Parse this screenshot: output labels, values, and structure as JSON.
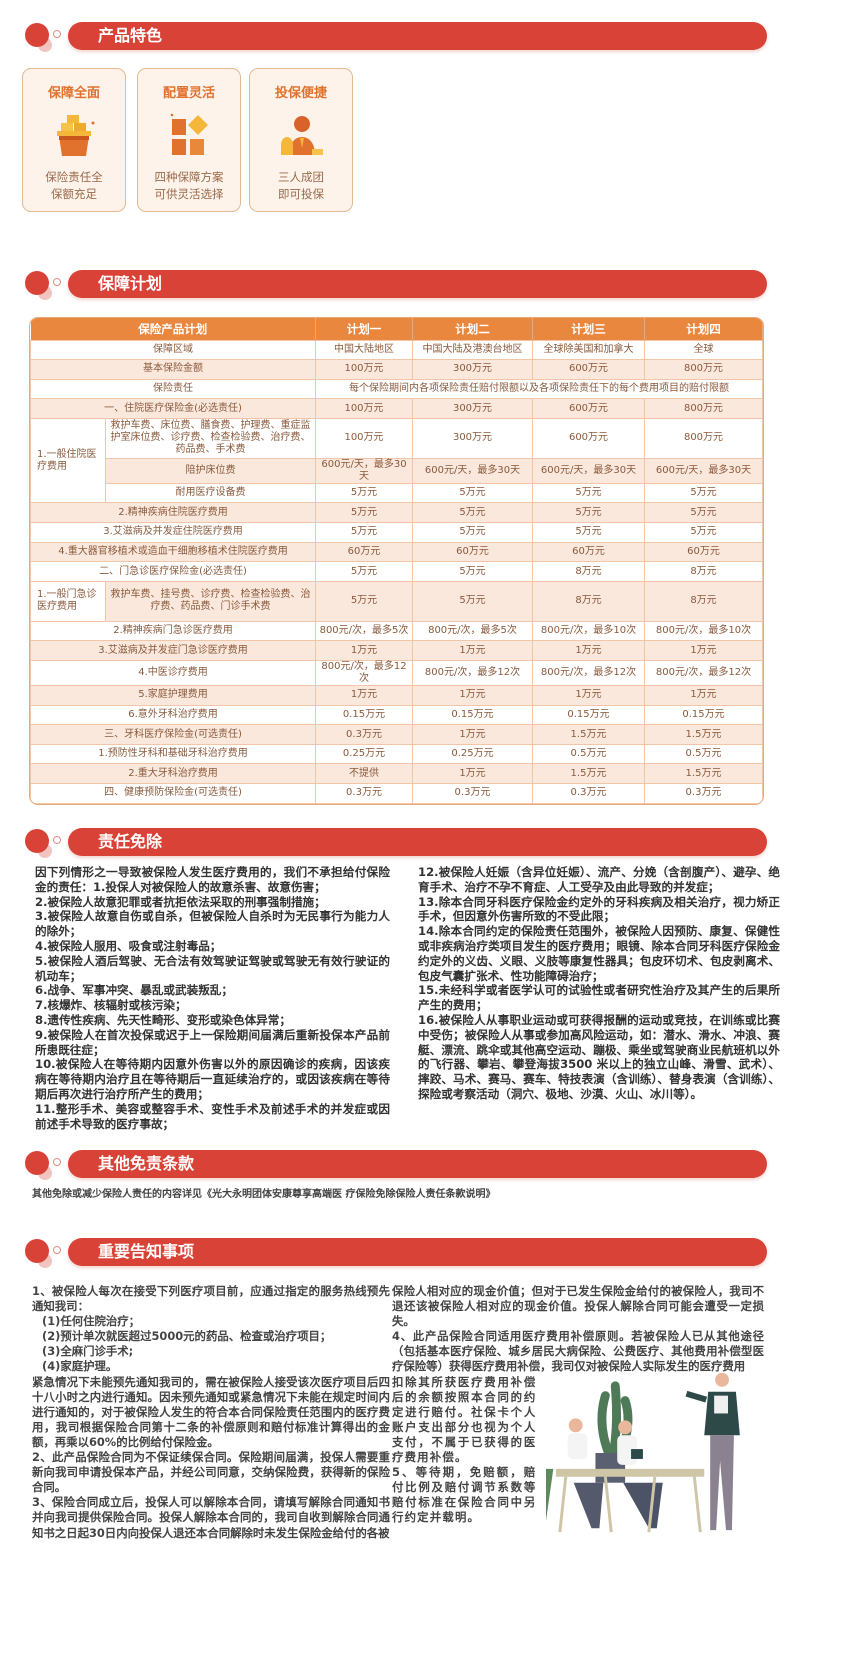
{
  "colors": {
    "accent": "#d94236",
    "table_header": "#e9873f",
    "table_alt_row": "#fbe8dd",
    "card_bg": "#fdf3ea",
    "card_title": "#e0722e"
  },
  "sections": {
    "features": "产品特色",
    "plan": "保障计划",
    "exclusions": "责任免除",
    "other_exclusions": "其他免责条款",
    "notices": "重要告知事项"
  },
  "features": [
    {
      "title": "保障全面",
      "icon": "gold-bars-basket-icon",
      "desc1": "保险责任全",
      "desc2": "保额充足"
    },
    {
      "title": "配置灵活",
      "icon": "blocks-grid-icon",
      "desc1": "四种保障方案",
      "desc2": "可供灵活选择"
    },
    {
      "title": "投保便捷",
      "icon": "person-money-icon",
      "desc1": "三人成团",
      "desc2": "即可投保"
    }
  ],
  "table": {
    "header": [
      "保险产品计划",
      "计划一",
      "计划二",
      "计划三",
      "计划四"
    ],
    "rows": [
      {
        "label": "保障区域",
        "values": [
          "中国大陆地区",
          "中国大陆及港澳台地区",
          "全球除美国和加拿大",
          "全球"
        ]
      },
      {
        "label": "基本保险金额",
        "values": [
          "100万元",
          "300万元",
          "600万元",
          "800万元"
        ]
      },
      {
        "label": "保险责任",
        "merged": "每个保险期间内各项保险责任赔付限额以及各项保险责任下的每个费用项目的赔付限额"
      },
      {
        "label": "一、住院医疗保险金(必选责任)",
        "values": [
          "100万元",
          "300万元",
          "600万元",
          "800万元"
        ]
      },
      {
        "group": "1.一般住院医疗费用",
        "group_rows": 3,
        "label": "救护车费、床位费、膳食费、护理费、重症监护室床位费、诊疗费、检查检验费、治疗费、药品费、手术费",
        "tall": true,
        "values": [
          "100万元",
          "300万元",
          "600万元",
          "800万元"
        ]
      },
      {
        "sub": true,
        "label": "陪护床位费",
        "values": [
          "600元/天，最多30天",
          "600元/天，最多30天",
          "600元/天，最多30天",
          "600元/天，最多30天"
        ]
      },
      {
        "sub": true,
        "label": "耐用医疗设备费",
        "values": [
          "5万元",
          "5万元",
          "5万元",
          "5万元"
        ]
      },
      {
        "label": "2.精神疾病住院医疗费用",
        "values": [
          "5万元",
          "5万元",
          "5万元",
          "5万元"
        ]
      },
      {
        "label": "3.艾滋病及并发症住院医疗费用",
        "values": [
          "5万元",
          "5万元",
          "5万元",
          "5万元"
        ]
      },
      {
        "label": "4.重大器官移植术或造血干细胞移植术住院医疗费用",
        "values": [
          "60万元",
          "60万元",
          "60万元",
          "60万元"
        ]
      },
      {
        "label": "二、门急诊医疗保险金(必选责任)",
        "values": [
          "5万元",
          "5万元",
          "8万元",
          "8万元"
        ]
      },
      {
        "group": "1.一般门急诊医疗费用",
        "group_rows": 1,
        "label": "救护车费、挂号费、诊疗费、检查检验费、治疗费、药品费、门诊手术费",
        "tall": true,
        "values": [
          "5万元",
          "5万元",
          "8万元",
          "8万元"
        ]
      },
      {
        "label": "2.精神疾病门急诊医疗费用",
        "values": [
          "800元/次，最多5次",
          "800元/次，最多5次",
          "800元/次，最多10次",
          "800元/次，最多10次"
        ]
      },
      {
        "label": "3.艾滋病及并发症门急诊医疗费用",
        "values": [
          "1万元",
          "1万元",
          "1万元",
          "1万元"
        ]
      },
      {
        "label": "4.中医诊疗费用",
        "values": [
          "800元/次，最多12次",
          "800元/次，最多12次",
          "800元/次，最多12次",
          "800元/次，最多12次"
        ]
      },
      {
        "label": "5.家庭护理费用",
        "values": [
          "1万元",
          "1万元",
          "1万元",
          "1万元"
        ]
      },
      {
        "label": "6.意外牙科治疗费用",
        "values": [
          "0.15万元",
          "0.15万元",
          "0.15万元",
          "0.15万元"
        ]
      },
      {
        "label": "三、牙科医疗保险金(可选责任)",
        "values": [
          "0.3万元",
          "1万元",
          "1.5万元",
          "1.5万元"
        ]
      },
      {
        "label": "1.预防性牙科和基础牙科治疗费用",
        "values": [
          "0.25万元",
          "0.25万元",
          "0.5万元",
          "0.5万元"
        ]
      },
      {
        "label": "2.重大牙科治疗费用",
        "values": [
          "不提供",
          "1万元",
          "1.5万元",
          "1.5万元"
        ]
      },
      {
        "label": "四、健康预防保险金(可选责任)",
        "values": [
          "0.3万元",
          "0.3万元",
          "0.3万元",
          "0.3万元"
        ]
      }
    ]
  },
  "exclusions": {
    "left": [
      "因下列情形之一导致被保险人发生医疗费用的，我们不承担给付保险金的责任：1.投保人对被保险人的故意杀害、故意伤害；",
      "2.被保险人故意犯罪或者抗拒依法采取的刑事强制措施；",
      "3.被保险人故意自伤或自杀，但被保险人自杀时为无民事行为能力人的除外；",
      "4.被保险人服用、吸食或注射毒品；",
      "5.被保险人酒后驾驶、无合法有效驾驶证驾驶或驾驶无有效行驶证的机动车；",
      "6.战争、军事冲突、暴乱或武装叛乱；",
      "7.核爆炸、核辐射或核污染；",
      "8.遗传性疾病、先天性畸形、变形或染色体异常；",
      "9.被保险人在首次投保或迟于上一保险期间届满后重新投保本产品前所患既往症；",
      "10.被保险人在等待期内因意外伤害以外的原因确诊的疾病，因该疾病在等待期内治疗且在等待期后一直延续治疗的，或因该疾病在等待期后再次进行治疗所产生的费用；",
      "11.整形手术、美容或整容手术、变性手术及前述手术的并发症或因前述手术导致的医疗事故；"
    ],
    "right": [
      "12.被保险人妊娠（含异位妊娠）、流产、分娩（含剖腹产）、避孕、绝育手术、治疗不孕不育症、人工受孕及由此导致的并发症；",
      "13.除本合同牙科医疗保险金约定外的牙科疾病及相关治疗，视力矫正手术，但因意外伤害所致的不受此限；",
      "14.除本合同约定的保险责任范围外，被保险人因预防、康复、保健性或非疾病治疗类项目发生的医疗费用；眼镜、除本合同牙科医疗保险金约定外的义齿、义眼、义肢等康复性器具；包皮环切术、包皮剥离术、包皮气囊扩张术、性功能障碍治疗；",
      "15.未经科学或者医学认可的试验性或者研究性治疗及其产生的后果所产生的费用；",
      "16.被保险人从事职业运动或可获得报酬的运动或竞技，在训练或比赛中受伤；被保险人从事或参加高风险运动，如：潜水、滑水、冲浪、赛艇、漂流、跳伞或其他高空运动、蹦极、乘坐或驾驶商业民航班机以外的飞行器、攀岩、攀登海拔3500 米以上的独立山峰、滑雪、武术）、摔跤、马术、赛马、赛车、特技表演（含训练）、替身表演（含训练）、探险或考察活动（洞穴、极地、沙漠、火山、冰川等）。"
    ]
  },
  "other_exclusions": {
    "text": "其他免除或减少保险人责任的内容详见《光大永明团体安康尊享高端医 疗保险免除保险人责任条款说明》"
  },
  "notices": {
    "item1_intro": "1、被保险人每次在接受下列医疗项目前，应通过指定的服务热线预先通知我司：",
    "item1_list": [
      "(1)任何住院治疗；",
      "(2)预计单次就医超过5000元的药品、检查或治疗项目；",
      "(3)全麻门诊手术;",
      "(4)家庭护理。"
    ],
    "item1_rest": "紧急情况下未能预先通知我司的，需在被保险人接受该次医疗项目后四十八小时之内进行通知。因未预先通知或紧急情况下未能在规定时间内进行通知的，对于被保险人发生的符合本合同保险责任范围内的医疗费用，我司根据保险合同第十二条的补偿原则和赔付标准计算得出的金额，再乘以60%的比例给付保险金。",
    "item2": "2、此产品保险合同为不保证续保合同。保险期间届满，投保人需要重新向我司申请投保本产品，并经公司同意，交纳保险费，获得新的保险合同。",
    "item3_a": "3、保险合同成立后，投保人可以解除本合同，请填写解除合同通知书并向我司提供保险合同。投保人解除本合同的，我司自收到解除合同通知书之日起30日内向投保人退还本合同解除时未发生保险金给付的各被",
    "item3_b": "保险人相对应的现金价值；但对于已发生保险金给付的被保险人，我司不退还该被保险人相对应的现金价值。投保人解除合同可能会遭受一定损失。",
    "item4_a": "4、此产品保险合同适用医疗费用补偿原则。若被保险人已从其他途径（包括基本医疗保险、城乡居民大病保险、公费医疗、其他费用补偿型医疗保险等）获得医疗费用补偿，我司仅对被保险人实际发生的医疗费用",
    "item4_b": "扣除其所获医疗费用补偿后的余额按照本合同的约定进行赔付。社保卡个人账户支出部分也视为个人支付，不属于已获得的医疗费用补偿。",
    "item5": "5、等待期，免赔额，赔付比例及赔付调节系数等赔付标准在保险合同中另行约定并载明。",
    "illustration": "people-meeting-illustration"
  }
}
